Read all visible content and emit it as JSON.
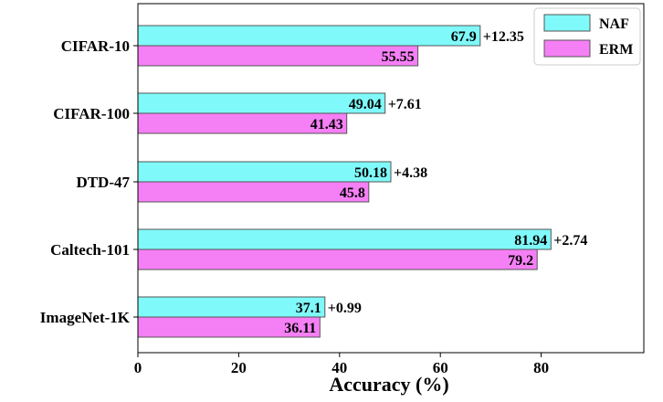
{
  "chart_data": {
    "type": "bar",
    "orientation": "horizontal",
    "categories": [
      "CIFAR-10",
      "CIFAR-100",
      "DTD-47",
      "Caltech-101",
      "ImageNet-1K"
    ],
    "series": [
      {
        "name": "NAF",
        "values": [
          67.9,
          49.04,
          50.18,
          81.94,
          37.1
        ],
        "color": "#7ff9f9"
      },
      {
        "name": "ERM",
        "values": [
          55.55,
          41.43,
          45.8,
          79.2,
          36.11
        ],
        "color": "#f57ff5"
      }
    ],
    "improvements": [
      "+12.35",
      "+7.61",
      "+4.38",
      "+2.74",
      "+0.99"
    ],
    "xlabel": "Accuracy (%)",
    "xlim": [
      0,
      100
    ],
    "xticks": [
      0,
      20,
      40,
      60,
      80
    ],
    "legend_position": "top-right",
    "grid": false
  }
}
